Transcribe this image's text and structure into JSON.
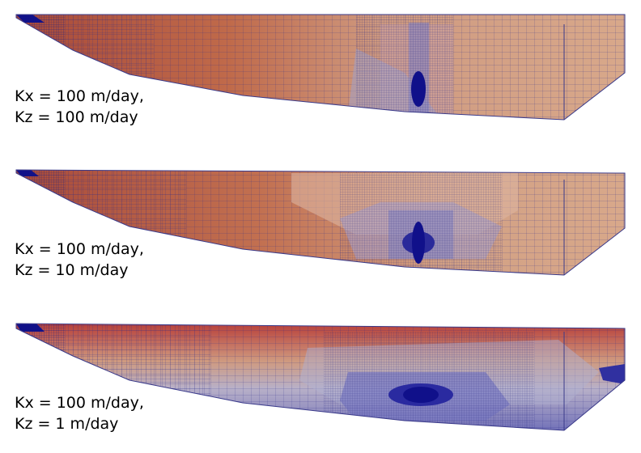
{
  "panels": [
    {
      "label_line1": "Kx = 100 m/day,",
      "label_line2": "Kz = 100 m/day",
      "colors": {
        "hot": "#b85540",
        "mid": "#d4a088",
        "cool": "#a8a8c8",
        "deep": "#10108a"
      }
    },
    {
      "label_line1": "Kx = 100 m/day,",
      "label_line2": "Kz = 10 m/day",
      "colors": {
        "hot": "#b85540",
        "mid": "#d4a088",
        "cool": "#a8a8c8",
        "deep": "#10108a"
      }
    },
    {
      "label_line1": "Kx = 100 m/day,",
      "label_line2": "Kz = 1 m/day",
      "colors": {
        "hot": "#b8403a",
        "mid": "#d4a088",
        "cool": "#8a8ac8",
        "deep": "#10108a"
      }
    }
  ],
  "mesh_line_color": "#2a2a8a"
}
